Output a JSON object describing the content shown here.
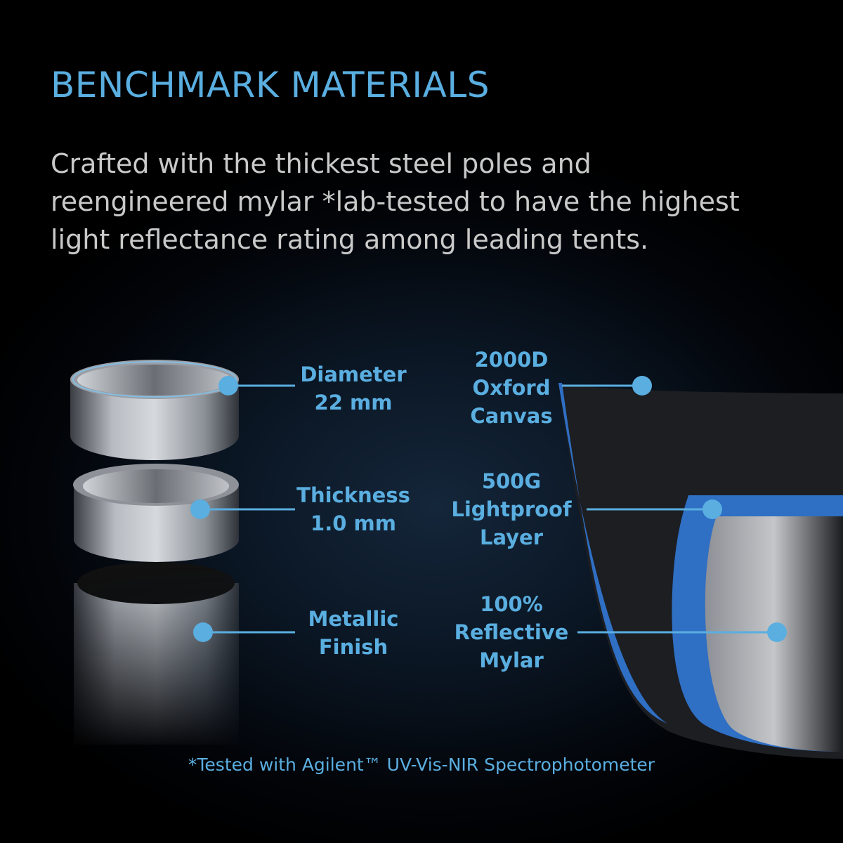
{
  "title": "BENCHMARK MATERIALS",
  "description": [
    "Crafted with the thickest steel poles and",
    "reengineered mylar *lab-tested to have the highest",
    "light reflectance rating among leading tents."
  ],
  "pole_callouts": [
    {
      "lines": [
        "Diameter",
        "22 mm"
      ]
    },
    {
      "lines": [
        "Thickness",
        "1.0 mm"
      ]
    },
    {
      "lines": [
        "Metallic",
        "Finish"
      ]
    }
  ],
  "fabric_callouts": [
    {
      "lines": [
        "2000D",
        "Oxford",
        "Canvas"
      ]
    },
    {
      "lines": [
        "500G",
        "Lightproof",
        "Layer"
      ]
    },
    {
      "lines": [
        "100%",
        "Reflective",
        "Mylar"
      ]
    }
  ],
  "footnote": "*Tested with Agilent™ UV-Vis-NIR Spectrophotometer",
  "colors": {
    "accent": "#5aaee0",
    "body_text": "#c9c9c9",
    "background": "#000000",
    "fabric_blue": "#2f6fc4"
  }
}
